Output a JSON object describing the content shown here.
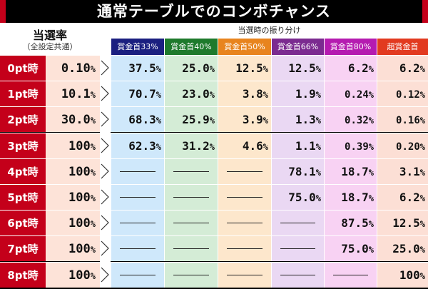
{
  "title": "通常テーブルでのコンボチャンス",
  "rate_header": {
    "line1": "当選率",
    "line2": "（全設定共通）"
  },
  "distribution_header": "当選時の振り分け",
  "columns": [
    {
      "label": "賞金首33%",
      "bg": "#1b1f80",
      "cell_bg": "#cfe8fb"
    },
    {
      "label": "賞金首40%",
      "bg": "#1e7a2c",
      "cell_bg": "#d4ecd6"
    },
    {
      "label": "賞金首50%",
      "bg": "#e8841e",
      "cell_bg": "#fde7cc"
    },
    {
      "label": "賞金首66%",
      "bg": "#7b2b90",
      "cell_bg": "#ead8f3"
    },
    {
      "label": "賞金首80%",
      "bg": "#b51bb0",
      "cell_bg": "#f8d2f3"
    },
    {
      "label": "超賞金首",
      "bg": "#e23a20",
      "cell_bg": "#fcdfd5"
    }
  ],
  "rows": [
    {
      "label": "0pt時",
      "rate": "0.10",
      "vals": [
        "37.5",
        "25.0",
        "12.5",
        "12.5",
        "6.2",
        "6.2"
      ]
    },
    {
      "label": "1pt時",
      "rate": "10.1",
      "vals": [
        "70.7",
        "23.0",
        "3.8",
        "1.9",
        "0.24",
        "0.12"
      ]
    },
    {
      "label": "2pt時",
      "rate": "30.0",
      "vals": [
        "68.3",
        "25.9",
        "3.9",
        "1.3",
        "0.32",
        "0.16"
      ]
    },
    {
      "label": "3pt時",
      "rate": "100",
      "vals": [
        "62.3",
        "31.2",
        "4.6",
        "1.1",
        "0.39",
        "0.20"
      ]
    },
    {
      "label": "4pt時",
      "rate": "100",
      "vals": [
        "",
        "",
        "",
        "78.1",
        "18.7",
        "3.1"
      ]
    },
    {
      "label": "5pt時",
      "rate": "100",
      "vals": [
        "",
        "",
        "",
        "75.0",
        "18.7",
        "6.2"
      ]
    },
    {
      "label": "6pt時",
      "rate": "100",
      "vals": [
        "",
        "",
        "",
        "",
        "87.5",
        "12.5"
      ]
    },
    {
      "label": "7pt時",
      "rate": "100",
      "vals": [
        "",
        "",
        "",
        "",
        "75.0",
        "25.0"
      ]
    },
    {
      "label": "8pt時",
      "rate": "100",
      "vals": [
        "",
        "",
        "",
        "",
        "",
        "100"
      ]
    }
  ],
  "percent_sign": "%",
  "colors": {
    "accent": "#c4001a",
    "rate_bg": "#fde3d8"
  }
}
